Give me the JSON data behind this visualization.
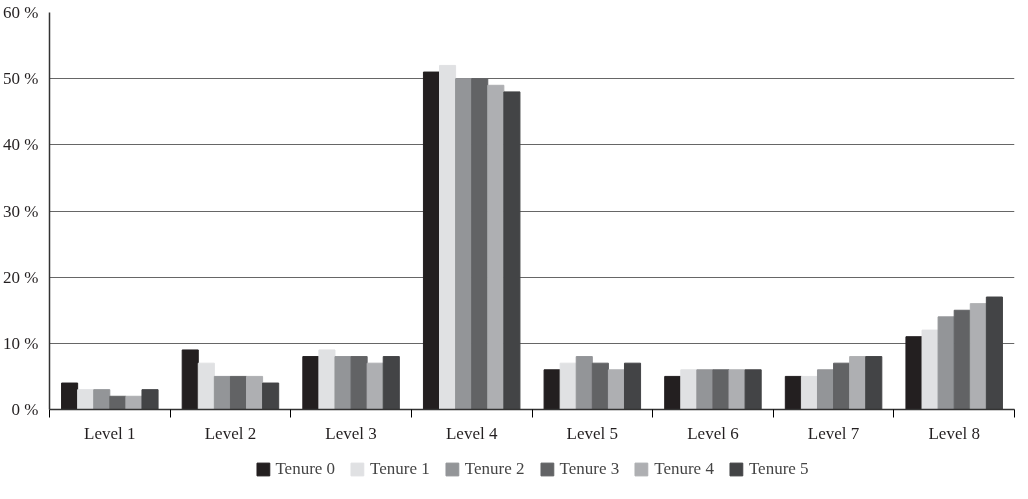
{
  "chart_data": {
    "type": "bar",
    "categories": [
      "Level 1",
      "Level 2",
      "Level 3",
      "Level 4",
      "Level 5",
      "Level 6",
      "Level 7",
      "Level 8"
    ],
    "series": [
      {
        "name": "Tenure 0",
        "color": "#231f20",
        "values": [
          4,
          9,
          8,
          51,
          6,
          5,
          5,
          11
        ]
      },
      {
        "name": "Tenure 1",
        "color": "#e0e1e3",
        "values": [
          3,
          7,
          9,
          52,
          7,
          6,
          5,
          12
        ]
      },
      {
        "name": "Tenure 2",
        "color": "#939598",
        "values": [
          3,
          5,
          8,
          50,
          8,
          6,
          6,
          14
        ]
      },
      {
        "name": "Tenure 3",
        "color": "#626365",
        "values": [
          2,
          5,
          8,
          50,
          7,
          6,
          7,
          15
        ]
      },
      {
        "name": "Tenure 4",
        "color": "#aeafb2",
        "values": [
          2,
          5,
          7,
          49,
          6,
          6,
          8,
          16
        ]
      },
      {
        "name": "Tenure 5",
        "color": "#434446",
        "values": [
          3,
          4,
          8,
          48,
          7,
          6,
          8,
          17
        ]
      }
    ],
    "ylim": [
      0,
      60
    ],
    "yticks": [
      {
        "value": 0,
        "label": "0 %"
      },
      {
        "value": 10,
        "label": "10 %"
      },
      {
        "value": 20,
        "label": "20 %"
      },
      {
        "value": 30,
        "label": "30 %"
      },
      {
        "value": 40,
        "label": "40 %"
      },
      {
        "value": 50,
        "label": "50 %"
      },
      {
        "value": 60,
        "label": "60 %"
      }
    ],
    "grid": "y",
    "legend": "bottom"
  }
}
